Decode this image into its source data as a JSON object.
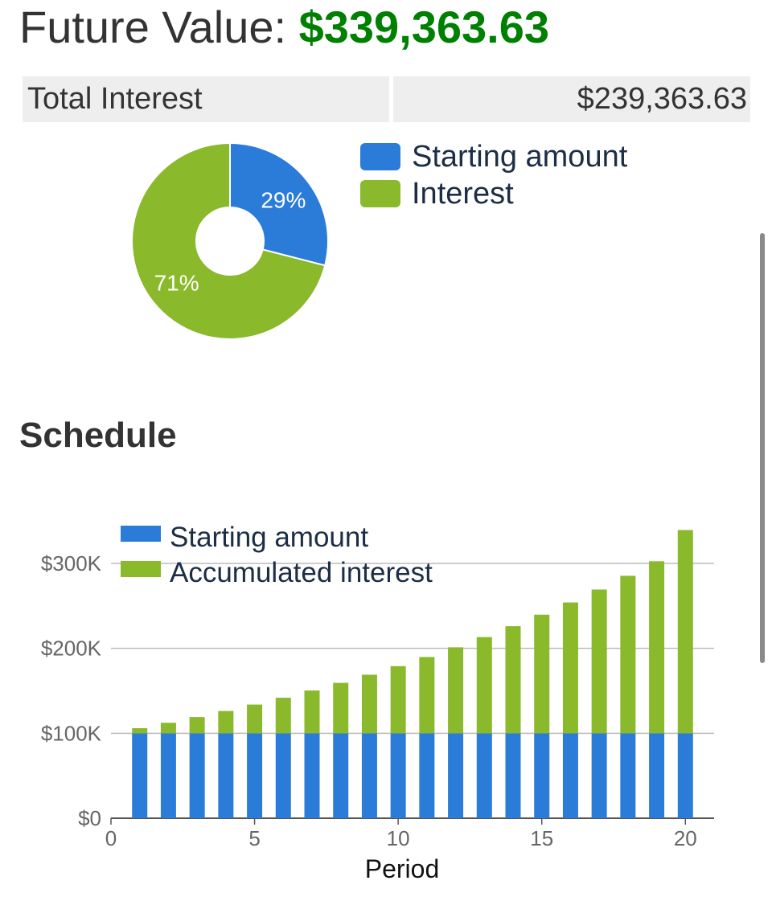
{
  "header": {
    "label": "Future Value:",
    "value": "$339,363.63"
  },
  "summary": {
    "total_interest_label": "Total Interest",
    "total_interest_value": "$239,363.63"
  },
  "pie": {
    "slices": [
      {
        "label": "29%",
        "fraction": 0.29,
        "color": "#2b7cd8"
      },
      {
        "label": "71%",
        "fraction": 0.71,
        "color": "#8ab92b"
      }
    ],
    "legend": [
      {
        "label": "Starting amount",
        "color": "#2b7cd8"
      },
      {
        "label": "Interest",
        "color": "#8ab92b"
      }
    ]
  },
  "schedule": {
    "title": "Schedule"
  },
  "chart_data": {
    "type": "bar",
    "stacked": true,
    "x": [
      1,
      2,
      3,
      4,
      5,
      6,
      7,
      8,
      9,
      10,
      11,
      12,
      13,
      14,
      15,
      16,
      17,
      18,
      19,
      20
    ],
    "series": [
      {
        "name": "Starting amount",
        "color": "#2b7cd8",
        "values": [
          100000,
          100000,
          100000,
          100000,
          100000,
          100000,
          100000,
          100000,
          100000,
          100000,
          100000,
          100000,
          100000,
          100000,
          100000,
          100000,
          100000,
          100000,
          100000,
          100000
        ]
      },
      {
        "name": "Accumulated interest",
        "color": "#8ab92b",
        "values": [
          6000,
          12360,
          19102,
          26248,
          33823,
          41852,
          50363,
          59385,
          68948,
          79085,
          89830,
          101220,
          113293,
          126090,
          139656,
          154035,
          169277,
          185434,
          202560,
          239364
        ]
      }
    ],
    "xlabel": "Period",
    "ylabel": "",
    "xticks": [
      0,
      5,
      10,
      15,
      20
    ],
    "xlim": [
      0,
      21
    ],
    "yticks": [
      "$0",
      "$100K",
      "$200K",
      "$300K"
    ],
    "ytick_values": [
      0,
      100000,
      200000,
      300000
    ],
    "ylim": [
      0,
      300000
    ],
    "grid": true,
    "legend_position": "top-left"
  }
}
